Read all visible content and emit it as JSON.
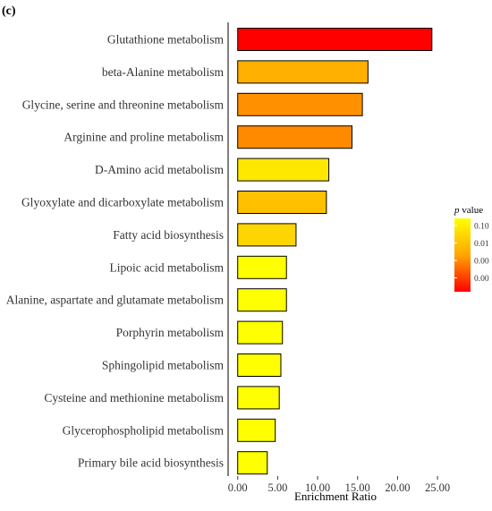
{
  "panel_label": "(c)",
  "chart_data": {
    "type": "bar",
    "orientation": "horizontal",
    "categories": [
      "Glutathione metabolism",
      "beta-Alanine metabolism",
      "Glycine, serine and threonine metabolism",
      "Arginine and proline metabolism",
      "D-Amino acid metabolism",
      "Glyoxylate and dicarboxylate metabolism",
      "Fatty acid biosynthesis",
      "Lipoic acid metabolism",
      "Alanine, aspartate and glutamate metabolism",
      "Porphyrin metabolism",
      "Sphingolipid metabolism",
      "Cysteine and methionine metabolism",
      "Glycerophospholipid metabolism",
      "Primary bile acid biosynthesis"
    ],
    "values": [
      24.3,
      16.3,
      15.6,
      14.3,
      11.4,
      11.1,
      7.3,
      6.1,
      6.1,
      5.6,
      5.4,
      5.2,
      4.7,
      3.7
    ],
    "p_values": [
      0.0,
      0.09,
      0.045,
      0.04,
      0.12,
      0.08,
      0.095,
      0.12,
      0.12,
      0.12,
      0.12,
      0.12,
      0.12,
      0.12
    ],
    "bar_colors": [
      "#FF0000",
      "#FFB000",
      "#FF9000",
      "#FF8A00",
      "#FFE800",
      "#FFC000",
      "#FFD500",
      "#FFFF00",
      "#FFFF00",
      "#FFFF00",
      "#FFFF00",
      "#FFFF00",
      "#FFFF00",
      "#FFFF00"
    ],
    "xlabel": "Enrichment Ratio",
    "ylabel": "",
    "xlim": [
      -1.2,
      26
    ],
    "xticks": [
      0,
      5,
      10,
      15,
      20,
      25
    ],
    "xtick_labels": [
      "0.00",
      "5.00",
      "10.00",
      "15.00",
      "20.00",
      "25.00"
    ],
    "grid": false,
    "legend": {
      "title_italic": "p",
      "title_rest": " value",
      "position": "right",
      "gradient_colors": [
        "#FFFF00",
        "#FFA500",
        "#FF0000"
      ],
      "tick_labels": [
        "0.10",
        "0.01",
        "0.00",
        "0.00"
      ]
    }
  }
}
